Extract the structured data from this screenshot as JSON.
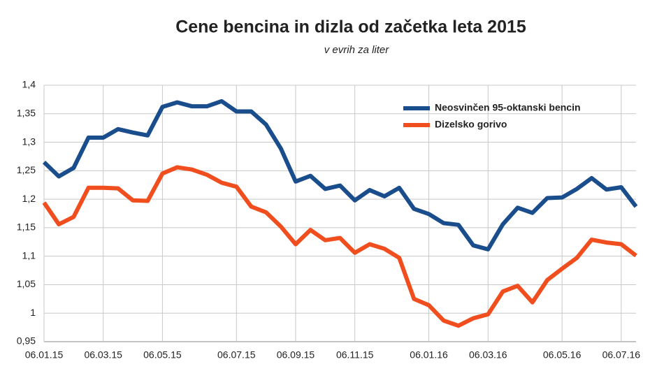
{
  "chart_data": {
    "type": "line",
    "title": "Cene bencina in dizla od začetka leta 2015",
    "subtitle": "v evrih za liter",
    "categories": [
      "06.01.15",
      null,
      null,
      null,
      "06.03.15",
      null,
      null,
      null,
      "06.05.15",
      null,
      null,
      null,
      null,
      "06.07.15",
      null,
      null,
      null,
      "06.09.15",
      null,
      null,
      null,
      "06.11.15",
      null,
      null,
      null,
      null,
      "06.01.16",
      null,
      null,
      null,
      "06.03.16",
      null,
      null,
      null,
      null,
      "06.05.16",
      null,
      null,
      null,
      "06.07.16",
      null
    ],
    "series": [
      {
        "name": "Neosvinčen 95-oktanski bencin",
        "color": "#1a4d8c",
        "values": [
          1.265,
          1.24,
          1.255,
          1.308,
          1.308,
          1.323,
          1.317,
          1.312,
          1.362,
          1.37,
          1.363,
          1.363,
          1.372,
          1.354,
          1.354,
          1.331,
          1.289,
          1.231,
          1.241,
          1.218,
          1.224,
          1.198,
          1.216,
          1.205,
          1.22,
          1.183,
          1.174,
          1.158,
          1.155,
          1.119,
          1.112,
          1.156,
          1.185,
          1.176,
          1.202,
          1.203,
          1.218,
          1.237,
          1.217,
          1.221,
          1.187
        ]
      },
      {
        "name": "Dizelsko gorivo",
        "color": "#f04e1e",
        "values": [
          1.194,
          1.156,
          1.169,
          1.22,
          1.22,
          1.219,
          1.198,
          1.197,
          1.245,
          1.256,
          1.252,
          1.243,
          1.229,
          1.222,
          1.187,
          1.177,
          1.152,
          1.121,
          1.146,
          1.128,
          1.132,
          1.106,
          1.121,
          1.113,
          1.097,
          1.025,
          1.014,
          0.987,
          0.978,
          0.991,
          0.998,
          1.038,
          1.048,
          1.019,
          1.058,
          1.078,
          1.097,
          1.129,
          1.124,
          1.121,
          1.101
        ]
      }
    ],
    "ylim": [
      0.95,
      1.4
    ],
    "yticks": [
      {
        "value": 0.95,
        "label": "0,95"
      },
      1,
      {
        "value": 1.05,
        "label": "1,05"
      },
      {
        "value": 1.1,
        "label": "1,1"
      },
      {
        "value": 1.15,
        "label": "1,15"
      },
      {
        "value": 1.2,
        "label": "1,2"
      },
      {
        "value": 1.25,
        "label": "1,25"
      },
      {
        "value": 1.3,
        "label": "1,3"
      },
      {
        "value": 1.35,
        "label": "1,35"
      },
      {
        "value": 1.4,
        "label": "1,4"
      }
    ],
    "grid": true,
    "legend": "top-right"
  }
}
